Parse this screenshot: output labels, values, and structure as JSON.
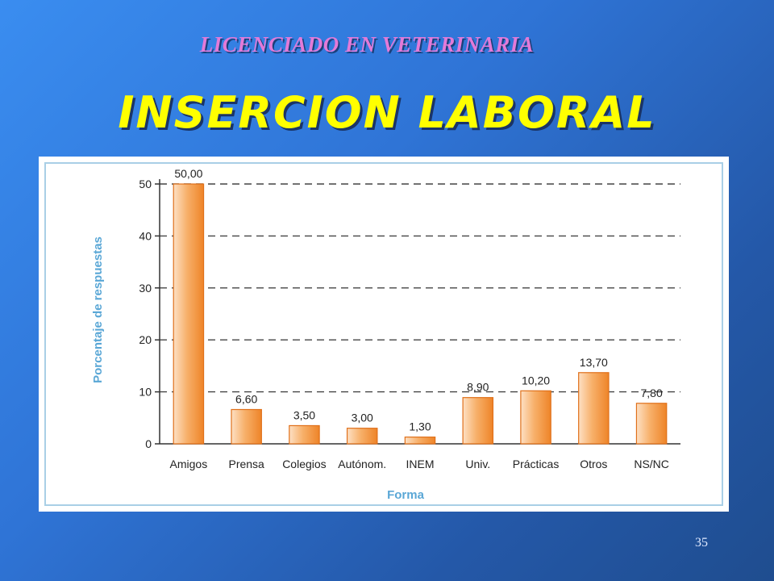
{
  "slide": {
    "subtitle": "LICENCIADO EN VETERINARIA",
    "title": "INSERCION LABORAL",
    "slide_number": "35"
  },
  "colors": {
    "background": "#2f74d6",
    "subtitle": "#e37ad8",
    "title": "#ffff00",
    "bar_fill_light": "#fde0c4",
    "bar_fill_dark": "#f08a2c",
    "bar_stroke": "#e0701a",
    "axis_label": "#5aa7d6",
    "frame": "#a9cfe6"
  },
  "chart_data": {
    "type": "bar",
    "categories": [
      "Amigos",
      "Prensa",
      "Colegios",
      "Autónom.",
      "INEM",
      "Univ.",
      "Prácticas",
      "Otros",
      "NS/NC"
    ],
    "values": [
      50.0,
      6.6,
      3.5,
      3.0,
      1.3,
      8.9,
      10.2,
      13.7,
      7.8
    ],
    "data_labels": [
      "50,00",
      "6,60",
      "3,50",
      "3,00",
      "1,30",
      "8,90",
      "10,20",
      "13,70",
      "7,80"
    ],
    "title": "",
    "xlabel": "Forma",
    "ylabel": "Porcentaje de respuestas",
    "ylim": [
      0,
      50
    ],
    "yticks": [
      0,
      10,
      20,
      30,
      40,
      50
    ],
    "grid": "horizontal dashed",
    "legend": "none"
  }
}
